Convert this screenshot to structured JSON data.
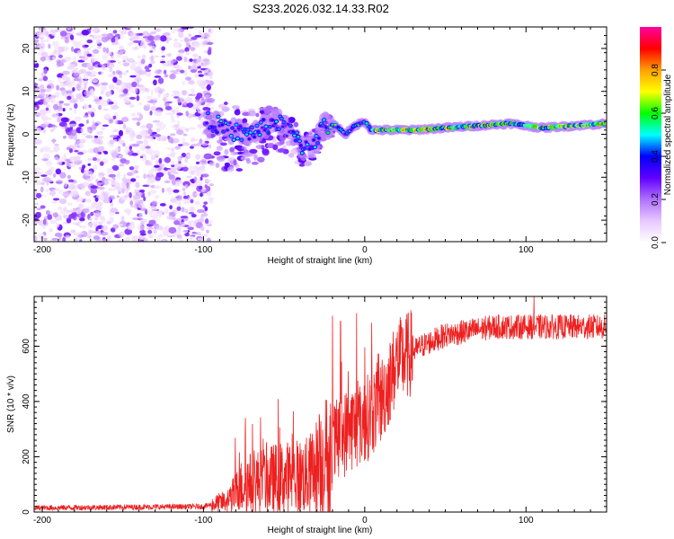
{
  "title": "S233.2026.032.14.33.R02",
  "chart_data": [
    {
      "type": "heatmap",
      "name": "spectrogram",
      "xlabel": "Height of straight line (km)",
      "ylabel": "Frequency (Hz)",
      "xlim": [
        -205,
        150
      ],
      "ylim": [
        -25,
        25
      ],
      "xticks": [
        -200,
        -100,
        0,
        100
      ],
      "yticks": [
        20,
        10,
        0,
        -10,
        -20
      ],
      "colorbar": {
        "label": "Normalized spectral amplitude",
        "range": [
          0,
          1
        ],
        "ticks": [
          0.0,
          0.2,
          0.4,
          0.6,
          0.8
        ],
        "colors": [
          "#ffffff",
          "#e8c8ff",
          "#b070ff",
          "#6000ff",
          "#0000ff",
          "#00ffff",
          "#00ff00",
          "#ffff00",
          "#ffa000",
          "#ff0000",
          "#ff00a0"
        ]
      },
      "ridge": {
        "x": [
          -95,
          -85,
          -75,
          -65,
          -55,
          -45,
          -38,
          -32,
          -25,
          -18,
          -12,
          -6,
          0,
          4,
          10,
          30,
          50,
          70,
          90,
          110,
          130,
          150
        ],
        "y": [
          3,
          1,
          0,
          1,
          3,
          0,
          -3,
          -2,
          2,
          2,
          0,
          2,
          3,
          1,
          1,
          1,
          1.5,
          2,
          2.5,
          1.5,
          2,
          2.5
        ]
      }
    },
    {
      "type": "line",
      "name": "snr",
      "xlabel": "Height of straight line (km)",
      "ylabel": "SNR (10 * v/v)",
      "xlim": [
        -205,
        150
      ],
      "ylim": [
        0,
        780
      ],
      "xticks": [
        -200,
        -100,
        0,
        100
      ],
      "yticks": [
        0,
        200,
        400,
        600
      ],
      "color": "#ee2020",
      "trend": {
        "x": [
          -205,
          -100,
          -85,
          -75,
          -55,
          -35,
          -20,
          -10,
          0,
          10,
          20,
          35,
          50,
          80,
          110,
          150
        ],
        "y": [
          15,
          20,
          40,
          100,
          120,
          130,
          230,
          300,
          330,
          400,
          540,
          600,
          640,
          670,
          670,
          670
        ]
      },
      "peaks": [
        {
          "x": -74,
          "y": 340
        },
        {
          "x": -20,
          "y": 710
        },
        {
          "x": -15,
          "y": 690
        },
        {
          "x": -5,
          "y": 720
        },
        {
          "x": 105,
          "y": 780
        }
      ]
    }
  ]
}
